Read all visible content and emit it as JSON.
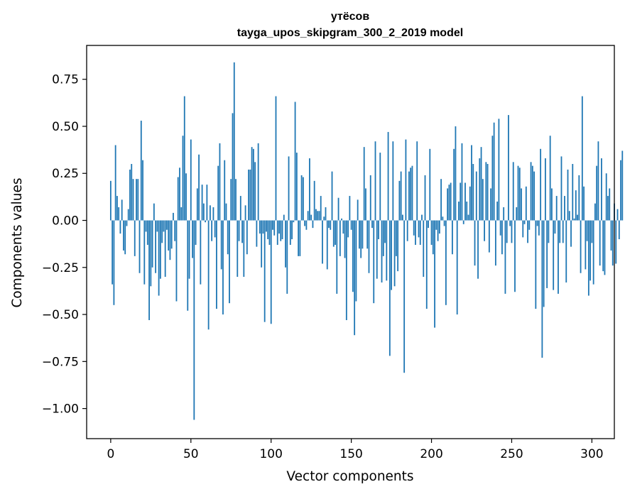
{
  "chart_data": {
    "type": "bar",
    "title": "утёсов",
    "subtitle": "tayga_upos_skipgram_300_2_2019 model",
    "xlabel": "Vector components",
    "ylabel": "Components values",
    "xlim": [
      -15,
      314
    ],
    "ylim": [
      -1.16,
      0.93
    ],
    "x_ticks": [
      0,
      50,
      100,
      150,
      200,
      250,
      300
    ],
    "x_tick_labels": [
      "0",
      "50",
      "100",
      "150",
      "200",
      "250",
      "300"
    ],
    "y_ticks": [
      0.75,
      0.5,
      0.25,
      0.0,
      -0.25,
      -0.5,
      -0.75,
      -1.0
    ],
    "y_tick_labels": [
      "0.75",
      "0.50",
      "0.25",
      "0.00",
      "−0.25",
      "−0.50",
      "−0.75",
      "−1.00"
    ],
    "bar_color": "#1f77b4",
    "grid": false,
    "legend": "none",
    "values": [
      0.21,
      -0.34,
      -0.45,
      0.4,
      0.13,
      0.07,
      -0.07,
      0.11,
      -0.16,
      -0.18,
      -0.03,
      0.06,
      0.27,
      0.3,
      0.22,
      -0.19,
      0.22,
      0.22,
      -0.28,
      0.53,
      0.32,
      -0.34,
      -0.06,
      -0.13,
      -0.53,
      -0.35,
      -0.25,
      0.09,
      -0.28,
      -0.06,
      -0.4,
      -0.31,
      -0.12,
      -0.06,
      -0.3,
      -0.05,
      -0.16,
      -0.21,
      -0.15,
      0.04,
      -0.11,
      -0.43,
      0.23,
      0.28,
      0.07,
      0.45,
      0.66,
      0.25,
      -0.48,
      -0.31,
      0.43,
      -0.2,
      -1.06,
      -0.13,
      0.17,
      0.35,
      -0.34,
      0.19,
      0.09,
      -0.01,
      0.19,
      -0.58,
      0.08,
      -0.11,
      0.07,
      -0.09,
      -0.47,
      0.29,
      0.41,
      -0.26,
      -0.5,
      0.32,
      0.09,
      -0.18,
      -0.44,
      0.22,
      0.57,
      0.84,
      0.22,
      -0.3,
      -0.11,
      0.13,
      -0.12,
      -0.3,
      0.08,
      -0.18,
      0.27,
      0.27,
      0.39,
      0.38,
      0.31,
      -0.14,
      0.41,
      -0.07,
      -0.25,
      -0.07,
      -0.54,
      -0.06,
      -0.1,
      -0.13,
      -0.55,
      -0.05,
      -0.08,
      0.66,
      -0.13,
      -0.07,
      -0.11,
      -0.1,
      0.03,
      -0.25,
      -0.39,
      0.34,
      -0.13,
      -0.1,
      -0.01,
      0.63,
      0.36,
      -0.19,
      -0.19,
      0.24,
      0.23,
      -0.03,
      -0.05,
      0.05,
      0.33,
      0.03,
      -0.04,
      0.21,
      0.06,
      0.05,
      0.05,
      0.13,
      -0.23,
      0.02,
      0.07,
      -0.26,
      -0.04,
      -0.05,
      0.26,
      -0.14,
      -0.13,
      -0.39,
      0.12,
      -0.19,
      0.01,
      -0.07,
      -0.2,
      -0.53,
      -0.09,
      0.13,
      -0.05,
      -0.38,
      -0.61,
      -0.43,
      0.11,
      -0.15,
      -0.2,
      -0.15,
      0.39,
      0.17,
      -0.15,
      -0.28,
      0.24,
      -0.04,
      -0.44,
      0.42,
      -0.31,
      -0.1,
      0.36,
      -0.33,
      -0.19,
      -0.12,
      -0.32,
      0.47,
      -0.72,
      -0.37,
      0.42,
      -0.35,
      -0.19,
      -0.27,
      0.21,
      0.26,
      0.03,
      -0.81,
      0.43,
      -0.11,
      0.26,
      0.28,
      0.29,
      -0.08,
      -0.13,
      0.42,
      -0.09,
      -0.13,
      0.03,
      -0.3,
      0.24,
      -0.47,
      -0.04,
      0.38,
      -0.13,
      -0.18,
      -0.57,
      -0.05,
      -0.11,
      -0.07,
      0.22,
      0.02,
      -0.03,
      -0.45,
      0.17,
      0.19,
      0.2,
      -0.18,
      0.38,
      0.5,
      -0.5,
      0.1,
      0.2,
      0.41,
      -0.02,
      0.2,
      0.1,
      0.03,
      0.18,
      0.4,
      0.3,
      -0.24,
      0.26,
      -0.31,
      0.33,
      0.39,
      0.22,
      -0.11,
      0.31,
      0.3,
      -0.17,
      0.17,
      0.45,
      0.52,
      -0.24,
      0.1,
      0.54,
      -0.08,
      -0.18,
      0.07,
      -0.39,
      -0.12,
      0.56,
      -0.03,
      -0.12,
      0.31,
      -0.38,
      0.07,
      0.29,
      0.28,
      0.17,
      -0.09,
      -0.02,
      0.18,
      -0.12,
      -0.05,
      0.31,
      0.29,
      0.26,
      -0.47,
      -0.03,
      -0.08,
      0.38,
      -0.73,
      -0.46,
      0.33,
      -0.36,
      -0.12,
      0.45,
      0.17,
      -0.37,
      -0.07,
      0.13,
      -0.39,
      -0.12,
      0.34,
      -0.12,
      0.13,
      -0.33,
      0.27,
      0.05,
      -0.14,
      0.3,
      0.01,
      0.16,
      0.03,
      0.24,
      -0.28,
      0.66,
      0.18,
      -0.26,
      -0.11,
      -0.4,
      -0.32,
      -0.12,
      -0.34,
      0.09,
      0.29,
      0.42,
      -0.24,
      0.33,
      -0.27,
      -0.29,
      0.25,
      0.13,
      0.17,
      -0.16,
      -0.24,
      0.09,
      -0.23,
      0.06,
      -0.1,
      0.32,
      0.37
    ]
  }
}
